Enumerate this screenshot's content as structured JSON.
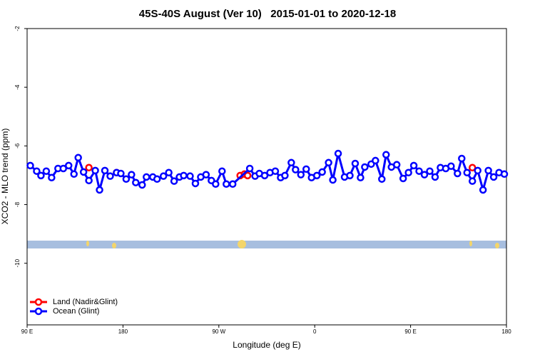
{
  "chart_data": {
    "type": "line",
    "title": "45S-40S August (Ver 10)   2015-01-01 to 2020-12-18",
    "x_label": "Longitude (deg E)",
    "y_label": "XCO2 - MLO trend (ppm)",
    "xlim": [
      90,
      540
    ],
    "xticks": [
      {
        "value": 90,
        "label": "90 E"
      },
      {
        "value": 180,
        "label": "180"
      },
      {
        "value": 270,
        "label": "90 W"
      },
      {
        "value": 360,
        "label": "0"
      },
      {
        "value": 450,
        "label": "90 E"
      },
      {
        "value": 540,
        "label": "180"
      }
    ],
    "ylim": [
      -12.1,
      -2
    ],
    "yticks": [
      -2,
      -4,
      -6,
      -8,
      -10
    ],
    "legend": "bottom-left",
    "series": [
      {
        "name": "Land (Nadir&Glint)",
        "color": "#ff0000",
        "x": [
          148,
          null,
          174,
          null,
          290,
          294,
          297,
          null,
          508
        ],
        "values": [
          -6.74,
          null,
          -6.91,
          null,
          -7.01,
          -6.96,
          -7.01,
          null,
          -6.74
        ]
      },
      {
        "name": "Ocean (Glint)",
        "color": "#0000ff",
        "x": [
          93,
          99,
          103,
          108,
          113,
          119,
          124,
          129,
          134,
          138,
          143,
          148,
          154,
          158,
          163,
          168,
          174,
          178,
          183,
          188,
          192,
          198,
          202,
          208,
          212,
          218,
          223,
          228,
          233,
          237,
          243,
          248,
          253,
          258,
          263,
          267,
          273,
          277,
          283,
          299,
          304,
          308,
          313,
          318,
          323,
          328,
          332,
          338,
          342,
          347,
          352,
          357,
          362,
          367,
          373,
          377,
          382,
          388,
          393,
          398,
          403,
          407,
          413,
          417,
          423,
          427,
          432,
          437,
          443,
          448,
          453,
          458,
          463,
          468,
          473,
          478,
          483,
          488,
          494,
          498,
          503,
          508,
          513,
          518,
          523,
          528,
          533,
          538
        ],
        "values": [
          -6.67,
          -6.86,
          -7.01,
          -6.86,
          -7.08,
          -6.77,
          -6.77,
          -6.67,
          -6.96,
          -6.4,
          -6.89,
          -7.18,
          -6.84,
          -7.5,
          -6.84,
          -7.03,
          -6.91,
          -6.94,
          -7.13,
          -6.98,
          -7.25,
          -7.33,
          -7.06,
          -7.06,
          -7.13,
          -7.03,
          -6.91,
          -7.2,
          -7.06,
          -7.01,
          -7.03,
          -7.28,
          -7.06,
          -6.98,
          -7.18,
          -7.3,
          -6.86,
          -7.3,
          -7.3,
          -6.77,
          -7.03,
          -6.94,
          -7.01,
          -6.91,
          -6.86,
          -7.08,
          -7.01,
          -6.57,
          -6.81,
          -6.98,
          -6.79,
          -7.08,
          -7.01,
          -6.89,
          -6.57,
          -7.16,
          -6.26,
          -7.06,
          -7.01,
          -6.6,
          -7.08,
          -6.72,
          -6.62,
          -6.5,
          -7.13,
          -6.3,
          -6.72,
          -6.64,
          -7.11,
          -6.91,
          -6.67,
          -6.86,
          -6.98,
          -6.86,
          -7.06,
          -6.74,
          -6.77,
          -6.69,
          -6.94,
          -6.43,
          -6.91,
          -7.2,
          -6.84,
          -7.5,
          -6.84,
          -7.06,
          -6.91,
          -6.96
        ]
      }
    ]
  }
}
